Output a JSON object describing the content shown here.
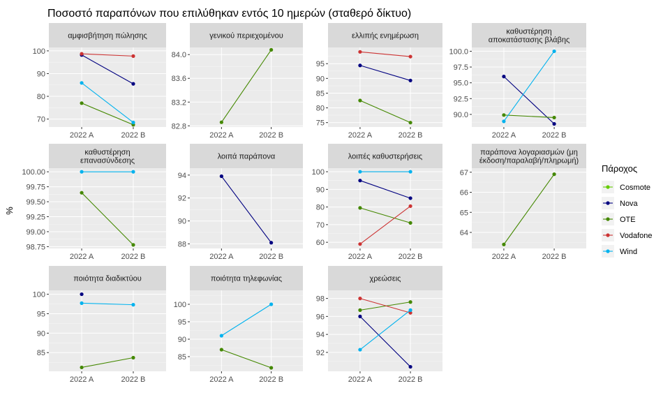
{
  "chart_data": {
    "type": "line",
    "title": "Ποσοστό παραπόνων που επιλύθηκαν εντός 10 ημερών (σταθερό δίκτυο)",
    "ylabel": "%",
    "x": [
      "2022 A",
      "2022 B"
    ],
    "legend": {
      "title": "Πάροχος",
      "position": "right",
      "entries": [
        "Cosmote",
        "Nova",
        "OTE",
        "Vodafone",
        "Wind"
      ]
    },
    "colors": {
      "Cosmote": "#66cc00",
      "Nova": "#000080",
      "OTE": "#448800",
      "Vodafone": "#cc3333",
      "Wind": "#00b2ee"
    },
    "panels": [
      {
        "title": [
          "αμφισβήτηση πώλησης"
        ],
        "ylim": [
          66.5,
          101.5
        ],
        "yticks": [
          70,
          80,
          90,
          100
        ],
        "series": [
          {
            "name": "Nova",
            "values": [
              98.2,
              85.5
            ]
          },
          {
            "name": "OTE",
            "values": [
              77.0,
              67.5
            ]
          },
          {
            "name": "Vodafone",
            "values": [
              98.7,
              97.7
            ]
          },
          {
            "name": "Wind",
            "values": [
              85.9,
              68.5
            ]
          }
        ]
      },
      {
        "title": [
          "γενικού περιεχομένου"
        ],
        "ylim": [
          82.78,
          84.12
        ],
        "yticks": [
          "82.8",
          "83.2",
          "83.6",
          "84.0"
        ],
        "series": [
          {
            "name": "OTE",
            "values": [
              82.86,
              84.08
            ]
          }
        ]
      },
      {
        "title": [
          "ελλιπής ενημέρωση"
        ],
        "ylim": [
          73.5,
          100.5
        ],
        "yticks": [
          75,
          80,
          85,
          90,
          95
        ],
        "series": [
          {
            "name": "Nova",
            "values": [
              94.4,
              89.3
            ]
          },
          {
            "name": "OTE",
            "values": [
              82.5,
              75.0
            ]
          },
          {
            "name": "Vodafone",
            "values": [
              99.0,
              97.4
            ]
          }
        ]
      },
      {
        "title": [
          "καθυστέρηση",
          "αποκατάστασης βλάβης"
        ],
        "ylim": [
          88.0,
          100.6
        ],
        "yticks": [
          "90.0",
          "92.5",
          "95.0",
          "97.5",
          "100.0"
        ],
        "series": [
          {
            "name": "Nova",
            "values": [
              96.0,
              88.5
            ]
          },
          {
            "name": "OTE",
            "values": [
              89.9,
              89.5
            ]
          },
          {
            "name": "Wind",
            "values": [
              88.9,
              100.0
            ]
          }
        ]
      },
      {
        "title": [
          "καθυστέρηση",
          "επανασύνδεσης"
        ],
        "ylim": [
          98.72,
          100.06
        ],
        "yticks": [
          "98.75",
          "99.00",
          "99.25",
          "99.50",
          "99.75",
          "100.00"
        ],
        "series": [
          {
            "name": "OTE",
            "values": [
              99.65,
              98.78
            ]
          },
          {
            "name": "Wind",
            "values": [
              100.0,
              100.0
            ]
          }
        ]
      },
      {
        "title": [
          "λοιπά παράπονα"
        ],
        "ylim": [
          87.6,
          94.6
        ],
        "yticks": [
          88,
          90,
          92,
          94
        ],
        "series": [
          {
            "name": "Nova",
            "values": [
              93.9,
              88.1
            ]
          }
        ]
      },
      {
        "title": [
          "λοιπές καθυστερήσεις"
        ],
        "ylim": [
          56.5,
          102.0
        ],
        "yticks": [
          60,
          70,
          80,
          90,
          100
        ],
        "series": [
          {
            "name": "Nova",
            "values": [
              95.0,
              85.0
            ]
          },
          {
            "name": "OTE",
            "values": [
              79.5,
              71.0
            ]
          },
          {
            "name": "Vodafone",
            "values": [
              59.0,
              80.5
            ]
          },
          {
            "name": "Wind",
            "values": [
              100.0,
              100.0
            ]
          }
        ]
      },
      {
        "title": [
          "παράπονα λογαριασμών (μη",
          "έκδοση/παραλαβή/πληρωμή)"
        ],
        "ylim": [
          63.2,
          67.2
        ],
        "yticks": [
          64,
          65,
          66,
          67
        ],
        "series": [
          {
            "name": "OTE",
            "values": [
              63.4,
              66.9
            ]
          }
        ]
      },
      {
        "title": [
          "ποιότητα διαδικτύου"
        ],
        "ylim": [
          80.2,
          101.0
        ],
        "yticks": [
          85,
          90,
          95,
          100
        ],
        "series": [
          {
            "name": "Nova",
            "values": [
              100.0,
              null
            ]
          },
          {
            "name": "OTE",
            "values": [
              81.2,
              83.7
            ]
          },
          {
            "name": "Wind",
            "values": [
              97.7,
              97.3
            ]
          }
        ]
      },
      {
        "title": [
          "ποιότητα τηλεφωνίας"
        ],
        "ylim": [
          80.8,
          104.0
        ],
        "yticks": [
          85,
          90,
          95,
          100
        ],
        "series": [
          {
            "name": "OTE",
            "values": [
              87.0,
              81.8
            ]
          },
          {
            "name": "Wind",
            "values": [
              91.0,
              100.0
            ]
          }
        ]
      },
      {
        "title": [
          "χρεώσεις"
        ],
        "ylim": [
          89.9,
          98.9
        ],
        "yticks": [
          92,
          94,
          96,
          98
        ],
        "series": [
          {
            "name": "Nova",
            "values": [
              96.0,
              90.4
            ]
          },
          {
            "name": "OTE",
            "values": [
              96.7,
              97.6
            ]
          },
          {
            "name": "Vodafone",
            "values": [
              98.0,
              96.4
            ]
          },
          {
            "name": "Wind",
            "values": [
              92.3,
              96.7
            ]
          }
        ]
      }
    ]
  }
}
